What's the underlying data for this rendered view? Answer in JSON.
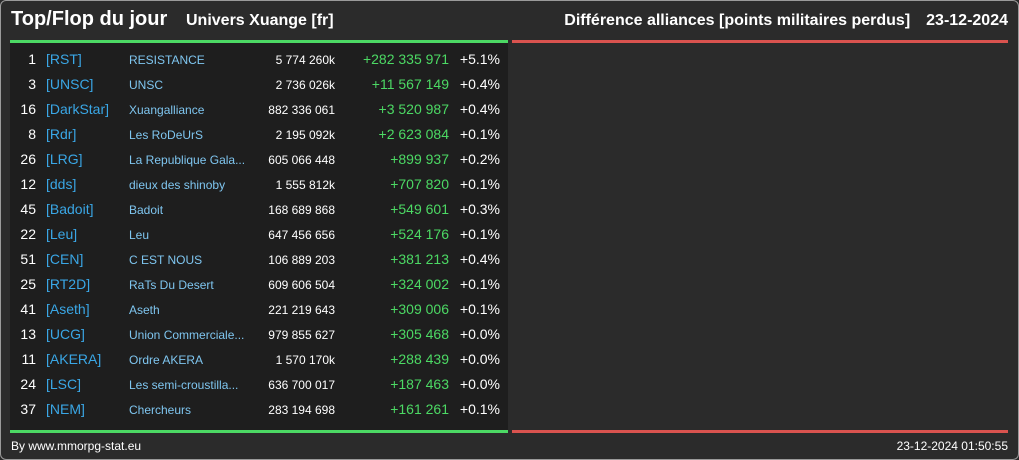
{
  "header": {
    "title": "Top/Flop du jour",
    "subtitle": "Univers Xuange [fr]",
    "metric": "Différence alliances [points militaires perdus]",
    "date": "23-12-2024"
  },
  "colors": {
    "accent_green": "#4cd964",
    "accent_red": "#d9534f",
    "tag_blue": "#3aa7e6"
  },
  "top_rows": [
    {
      "rank": "1",
      "tag": "[RST]",
      "name": "RESISTANCE",
      "points": "5 774 260k",
      "diff": "+282 335 971",
      "pct": "+5.1%"
    },
    {
      "rank": "3",
      "tag": "[UNSC]",
      "name": "UNSC",
      "points": "2 736 026k",
      "diff": "+11 567 149",
      "pct": "+0.4%"
    },
    {
      "rank": "16",
      "tag": "[DarkStar]",
      "name": "Xuangalliance",
      "points": "882 336 061",
      "diff": "+3 520 987",
      "pct": "+0.4%"
    },
    {
      "rank": "8",
      "tag": "[Rdr]",
      "name": "Les RoDeUrS",
      "points": "2 195 092k",
      "diff": "+2 623 084",
      "pct": "+0.1%"
    },
    {
      "rank": "26",
      "tag": "[LRG]",
      "name": "La Republique Gala...",
      "points": "605 066 448",
      "diff": "+899 937",
      "pct": "+0.2%"
    },
    {
      "rank": "12",
      "tag": "[dds]",
      "name": "dieux des shinoby",
      "points": "1 555 812k",
      "diff": "+707 820",
      "pct": "+0.1%"
    },
    {
      "rank": "45",
      "tag": "[Badoit]",
      "name": "Badoit",
      "points": "168 689 868",
      "diff": "+549 601",
      "pct": "+0.3%"
    },
    {
      "rank": "22",
      "tag": "[Leu]",
      "name": "Leu",
      "points": "647 456 656",
      "diff": "+524 176",
      "pct": "+0.1%"
    },
    {
      "rank": "51",
      "tag": "[CEN]",
      "name": "C EST NOUS",
      "points": "106 889 203",
      "diff": "+381 213",
      "pct": "+0.4%"
    },
    {
      "rank": "25",
      "tag": "[RT2D]",
      "name": "RaTs Du Desert",
      "points": "609 606 504",
      "diff": "+324 002",
      "pct": "+0.1%"
    },
    {
      "rank": "41",
      "tag": "[Aseth]",
      "name": "Aseth",
      "points": "221 219 643",
      "diff": "+309 006",
      "pct": "+0.1%"
    },
    {
      "rank": "13",
      "tag": "[UCG]",
      "name": "Union Commerciale...",
      "points": "979 855 627",
      "diff": "+305 468",
      "pct": "+0.0%"
    },
    {
      "rank": "11",
      "tag": "[AKERA]",
      "name": "Ordre AKERA",
      "points": "1 570 170k",
      "diff": "+288 439",
      "pct": "+0.0%"
    },
    {
      "rank": "24",
      "tag": "[LSC]",
      "name": "Les semi-croustilla...",
      "points": "636 700 017",
      "diff": "+187 463",
      "pct": "+0.0%"
    },
    {
      "rank": "37",
      "tag": "[NEM]",
      "name": "Chercheurs",
      "points": "283 194 698",
      "diff": "+161 261",
      "pct": "+0.1%"
    }
  ],
  "footer": {
    "source": "By www.mmorpg-stat.eu",
    "timestamp": "23-12-2024 01:50:55"
  }
}
